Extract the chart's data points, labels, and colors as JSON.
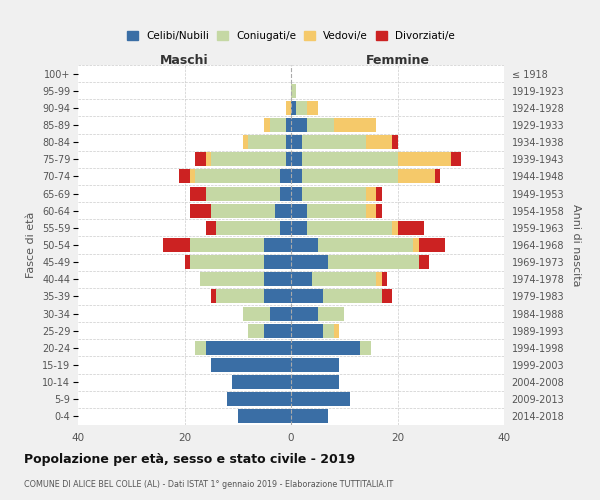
{
  "age_groups": [
    "0-4",
    "5-9",
    "10-14",
    "15-19",
    "20-24",
    "25-29",
    "30-34",
    "35-39",
    "40-44",
    "45-49",
    "50-54",
    "55-59",
    "60-64",
    "65-69",
    "70-74",
    "75-79",
    "80-84",
    "85-89",
    "90-94",
    "95-99",
    "100+"
  ],
  "birth_years": [
    "2014-2018",
    "2009-2013",
    "2004-2008",
    "1999-2003",
    "1994-1998",
    "1989-1993",
    "1984-1988",
    "1979-1983",
    "1974-1978",
    "1969-1973",
    "1964-1968",
    "1959-1963",
    "1954-1958",
    "1949-1953",
    "1944-1948",
    "1939-1943",
    "1934-1938",
    "1929-1933",
    "1924-1928",
    "1919-1923",
    "≤ 1918"
  ],
  "colors": {
    "celibi": "#3a6ea5",
    "coniugati": "#c5d8a4",
    "vedovi": "#f5c96a",
    "divorziati": "#cc2222"
  },
  "maschi": {
    "celibi": [
      10,
      12,
      11,
      15,
      16,
      5,
      4,
      5,
      5,
      5,
      5,
      2,
      3,
      2,
      2,
      1,
      1,
      1,
      0,
      0,
      0
    ],
    "coniugati": [
      0,
      0,
      0,
      0,
      2,
      3,
      5,
      9,
      12,
      14,
      14,
      12,
      12,
      14,
      16,
      14,
      7,
      3,
      0,
      0,
      0
    ],
    "vedovi": [
      0,
      0,
      0,
      0,
      0,
      0,
      0,
      0,
      0,
      0,
      0,
      0,
      0,
      0,
      1,
      1,
      1,
      1,
      1,
      0,
      0
    ],
    "divorziati": [
      0,
      0,
      0,
      0,
      0,
      0,
      0,
      1,
      0,
      1,
      5,
      2,
      4,
      3,
      2,
      2,
      0,
      0,
      0,
      0,
      0
    ]
  },
  "femmine": {
    "celibi": [
      7,
      11,
      9,
      9,
      13,
      6,
      5,
      6,
      4,
      7,
      5,
      3,
      3,
      2,
      2,
      2,
      2,
      3,
      1,
      0,
      0
    ],
    "coniugati": [
      0,
      0,
      0,
      0,
      2,
      2,
      5,
      11,
      12,
      17,
      18,
      16,
      11,
      12,
      18,
      18,
      12,
      5,
      2,
      1,
      0
    ],
    "vedovi": [
      0,
      0,
      0,
      0,
      0,
      1,
      0,
      0,
      1,
      0,
      1,
      1,
      2,
      2,
      7,
      10,
      5,
      8,
      2,
      0,
      0
    ],
    "divorziati": [
      0,
      0,
      0,
      0,
      0,
      0,
      0,
      2,
      1,
      2,
      5,
      5,
      1,
      1,
      1,
      2,
      1,
      0,
      0,
      0,
      0
    ]
  },
  "xlim": 40,
  "title": "Popolazione per età, sesso e stato civile - 2019",
  "subtitle": "COMUNE DI ALICE BEL COLLE (AL) - Dati ISTAT 1° gennaio 2019 - Elaborazione TUTTITALIA.IT",
  "xlabel_left": "Maschi",
  "xlabel_right": "Femmine",
  "ylabel": "Fasce di età",
  "ylabel_right": "Anni di nascita",
  "legend_labels": [
    "Celibi/Nubili",
    "Coniugati/e",
    "Vedovi/e",
    "Divorziati/e"
  ],
  "background_color": "#f0f0f0",
  "plot_bg": "#ffffff"
}
